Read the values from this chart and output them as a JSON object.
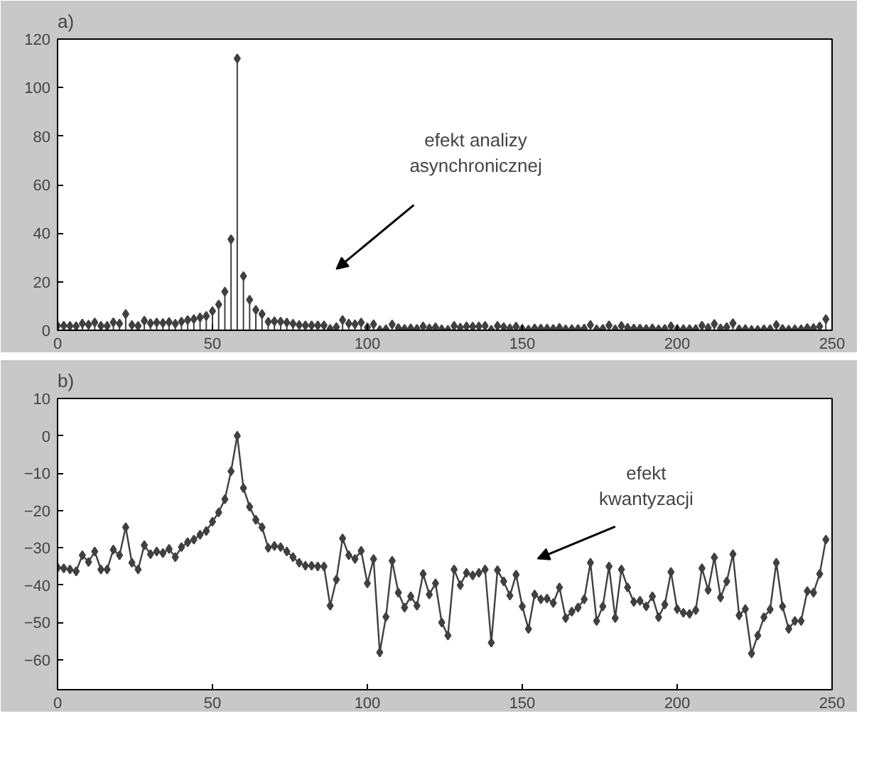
{
  "chart_data": [
    {
      "type": "lollipop",
      "title": "a)",
      "x": [
        0,
        2,
        4,
        6,
        8,
        10,
        12,
        14,
        16,
        18,
        20,
        22,
        24,
        26,
        28,
        30,
        32,
        34,
        36,
        38,
        40,
        42,
        44,
        46,
        48,
        50,
        52,
        54,
        56,
        58,
        60,
        62,
        64,
        66,
        68,
        70,
        72,
        74,
        76,
        78,
        80,
        82,
        84,
        86,
        88,
        90,
        92,
        94,
        96,
        98,
        100,
        102,
        104,
        106,
        108,
        110,
        112,
        114,
        116,
        118,
        120,
        122,
        124,
        126,
        128,
        130,
        132,
        134,
        136,
        138,
        140,
        142,
        144,
        146,
        148,
        150,
        152,
        154,
        156,
        158,
        160,
        162,
        164,
        166,
        168,
        170,
        172,
        174,
        176,
        178,
        180,
        182,
        184,
        186,
        188,
        190,
        192,
        194,
        196,
        198,
        200,
        202,
        204,
        206,
        208,
        210,
        212,
        214,
        216,
        218,
        220,
        222,
        224,
        226,
        228,
        230,
        232,
        234,
        236,
        238,
        240,
        242,
        244,
        246,
        248
      ],
      "series": [
        {
          "color": "#404040",
          "values": [
            1.9,
            1.9,
            1.8,
            1.7,
            2.8,
            2.3,
            3.2,
            1.8,
            1.8,
            3.3,
            2.8,
            6.7,
            2.2,
            1.8,
            3.9,
            2.9,
            3.2,
            3.0,
            3.4,
            2.7,
            3.6,
            4.2,
            4.6,
            5.3,
            5.9,
            7.9,
            10.6,
            15.9,
            37.5,
            112,
            22.3,
            12.6,
            8.4,
            6.7,
            3.5,
            3.7,
            3.6,
            3.2,
            2.7,
            2.2,
            2.0,
            2.0,
            2.0,
            2.0,
            0.6,
            1.3,
            4.2,
            2.8,
            2.5,
            3.2,
            1.2,
            2.5,
            0.1,
            0.4,
            2.4,
            0.9,
            0.6,
            0.8,
            0.6,
            1.6,
            0.8,
            1.2,
            0.4,
            0.2,
            1.8,
            1.1,
            1.6,
            1.5,
            1.6,
            1.8,
            0.2,
            1.8,
            1.3,
            0.8,
            1.5,
            0.6,
            0.3,
            0.8,
            0.7,
            0.7,
            0.6,
            1.0,
            0.4,
            0.5,
            0.6,
            0.7,
            2.2,
            0.4,
            0.6,
            2.0,
            0.4,
            1.8,
            1.0,
            0.7,
            0.7,
            0.6,
            0.8,
            0.4,
            0.6,
            1.7,
            0.5,
            0.5,
            0.5,
            0.5,
            1.9,
            1.0,
            2.6,
            0.8,
            1.3,
            2.9,
            0.4,
            0.5,
            0.1,
            0.2,
            0.4,
            0.5,
            2.2,
            0.6,
            0.3,
            0.4,
            0.4,
            0.9,
            0.9,
            1.6,
            4.6
          ]
        }
      ],
      "xlim": [
        0,
        250
      ],
      "xticks": [
        0,
        50,
        100,
        150,
        200,
        250
      ],
      "ylim": [
        0,
        120
      ],
      "yticks": [
        0,
        20,
        40,
        60,
        80,
        100,
        120
      ],
      "marker": "diamond",
      "grid": false,
      "annotations": [
        "efekt analizy\nasynchronicznej"
      ]
    },
    {
      "type": "line",
      "title": "b)",
      "x": [
        0,
        2,
        4,
        6,
        8,
        10,
        12,
        14,
        16,
        18,
        20,
        22,
        24,
        26,
        28,
        30,
        32,
        34,
        36,
        38,
        40,
        42,
        44,
        46,
        48,
        50,
        52,
        54,
        56,
        58,
        60,
        62,
        64,
        66,
        68,
        70,
        72,
        74,
        76,
        78,
        80,
        82,
        84,
        86,
        88,
        90,
        92,
        94,
        96,
        98,
        100,
        102,
        104,
        106,
        108,
        110,
        112,
        114,
        116,
        118,
        120,
        122,
        124,
        126,
        128,
        130,
        132,
        134,
        136,
        138,
        140,
        142,
        144,
        146,
        148,
        150,
        152,
        154,
        156,
        158,
        160,
        162,
        164,
        166,
        168,
        170,
        172,
        174,
        176,
        178,
        180,
        182,
        184,
        186,
        188,
        190,
        192,
        194,
        196,
        198,
        200,
        202,
        204,
        206,
        208,
        210,
        212,
        214,
        216,
        218,
        220,
        222,
        224,
        226,
        228,
        230,
        232,
        234,
        236,
        238,
        240,
        242,
        244,
        246,
        248
      ],
      "series": [
        {
          "color": "#404040",
          "values": [
            -35.3,
            -35.5,
            -35.8,
            -36.3,
            -32,
            -33.8,
            -31,
            -35.8,
            -35.8,
            -30.5,
            -32,
            -24.5,
            -34,
            -35.8,
            -29.3,
            -31.7,
            -31,
            -31.4,
            -30.3,
            -32.5,
            -29.8,
            -28.5,
            -27.8,
            -26.5,
            -25.5,
            -23,
            -20.5,
            -17,
            -9.5,
            0,
            -14,
            -19,
            -22.5,
            -24.5,
            -30,
            -29.5,
            -29.8,
            -31,
            -32.5,
            -34,
            -34.8,
            -34.8,
            -35,
            -35,
            -45.5,
            -38.5,
            -27.5,
            -32,
            -33,
            -30.8,
            -39.5,
            -33,
            -58,
            -48.5,
            -33.5,
            -42,
            -46,
            -43,
            -45.5,
            -37,
            -42.5,
            -39.5,
            -50,
            -53.5,
            -35.8,
            -40,
            -36.7,
            -37.4,
            -36.7,
            -35.8,
            -55.4,
            -36,
            -39,
            -42.8,
            -37.2,
            -45.7,
            -51.7,
            -42.5,
            -43.8,
            -43.6,
            -44.8,
            -40.6,
            -48.8,
            -47.1,
            -46,
            -43.8,
            -34,
            -49.6,
            -45.7,
            -35,
            -48.8,
            -35.8,
            -40.6,
            -44.5,
            -44.2,
            -45.7,
            -43,
            -48.6,
            -45.2,
            -36.5,
            -46.4,
            -47.4,
            -47.7,
            -46.7,
            -35.5,
            -41.3,
            -32.6,
            -43.3,
            -39,
            -31.7,
            -48.1,
            -46.4,
            -58.3,
            -53.5,
            -48.6,
            -46.5,
            -34,
            -45.7,
            -51.7,
            -49.6,
            -49.6,
            -41.6,
            -42,
            -37,
            -27.8
          ]
        }
      ],
      "xlim": [
        0,
        250
      ],
      "xticks": [
        0,
        50,
        100,
        150,
        200,
        250
      ],
      "ylim": [
        -68,
        10
      ],
      "yticks": [
        -60,
        -50,
        -40,
        -30,
        -20,
        -10,
        0,
        10
      ],
      "marker": "diamond",
      "line_style": "solid",
      "grid": false,
      "annotations": [
        "efekt\nkwantyzacji"
      ]
    }
  ]
}
